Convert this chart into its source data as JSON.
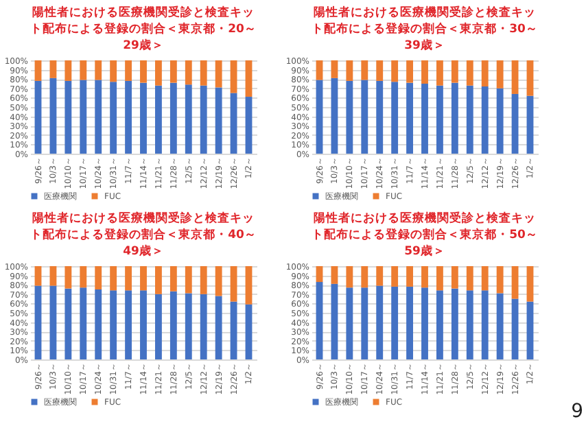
{
  "chart_data": [
    {
      "type": "bar",
      "stacked": true,
      "title": "陽性者における医療機関受診と検査キット配布による登録の割合＜東京都・20～29歳＞",
      "categories": [
        "9/26～",
        "10/3～",
        "10/10～",
        "10/17～",
        "10/24～",
        "10/31～",
        "11/7～",
        "11/14～",
        "11/21～",
        "11/28～",
        "12/5～",
        "12/12～",
        "12/19～",
        "12/26～",
        "1/2～"
      ],
      "ylim": [
        0,
        100
      ],
      "yticks": [
        {
          "value": 0,
          "label": "0%"
        },
        {
          "value": 10,
          "label": "10%"
        },
        {
          "value": 20,
          "label": "20%"
        },
        {
          "value": 30,
          "label": "30%"
        },
        {
          "value": 40,
          "label": "40%"
        },
        {
          "value": 50,
          "label": "50%"
        },
        {
          "value": 60,
          "label": "60%"
        },
        {
          "value": 70,
          "label": "70%"
        },
        {
          "value": 80,
          "label": "80%"
        },
        {
          "value": 90,
          "label": "90%"
        },
        {
          "value": 100,
          "label": "100%"
        }
      ],
      "grid": "y",
      "legend": "bottom",
      "series": [
        {
          "name": "医療機関",
          "color": "#4472c4",
          "values": [
            78,
            81,
            78,
            79,
            79,
            77,
            78,
            76,
            73,
            76,
            74,
            73,
            71,
            65,
            61
          ]
        },
        {
          "name": "FUC",
          "color": "#ed7d31",
          "values": [
            22,
            19,
            22,
            21,
            21,
            23,
            22,
            24,
            27,
            24,
            26,
            27,
            29,
            35,
            39
          ]
        }
      ]
    },
    {
      "type": "bar",
      "stacked": true,
      "title": "陽性者における医療機関受診と検査キット配布による登録の割合＜東京都・30～39歳＞",
      "categories": [
        "9/26～",
        "10/3～",
        "10/10～",
        "10/17～",
        "10/24～",
        "10/31～",
        "11/7～",
        "11/14～",
        "11/21～",
        "11/28～",
        "12/5～",
        "12/12～",
        "12/19～",
        "12/26～",
        "1/2～"
      ],
      "ylim": [
        0,
        100
      ],
      "yticks": [
        {
          "value": 0,
          "label": "0%"
        },
        {
          "value": 10,
          "label": "10%"
        },
        {
          "value": 20,
          "label": "20%"
        },
        {
          "value": 30,
          "label": "30%"
        },
        {
          "value": 40,
          "label": "40%"
        },
        {
          "value": 50,
          "label": "50%"
        },
        {
          "value": 60,
          "label": "60%"
        },
        {
          "value": 70,
          "label": "70%"
        },
        {
          "value": 80,
          "label": "80%"
        },
        {
          "value": 90,
          "label": "90%"
        },
        {
          "value": 100,
          "label": "100%"
        }
      ],
      "grid": "y",
      "legend": "bottom",
      "series": [
        {
          "name": "医療機関",
          "color": "#4472c4",
          "values": [
            79,
            81,
            78,
            79,
            78,
            77,
            76,
            75,
            73,
            76,
            73,
            72,
            70,
            64,
            62
          ]
        },
        {
          "name": "FUC",
          "color": "#ed7d31",
          "values": [
            21,
            19,
            22,
            21,
            22,
            23,
            24,
            25,
            27,
            24,
            27,
            28,
            30,
            36,
            38
          ]
        }
      ]
    },
    {
      "type": "bar",
      "stacked": true,
      "title": "陽性者における医療機関受診と検査キット配布による登録の割合＜東京都・40～49歳＞",
      "categories": [
        "9/26～",
        "10/3～",
        "10/10～",
        "10/17～",
        "10/24～",
        "10/31～",
        "11/7～",
        "11/14～",
        "11/21～",
        "11/28～",
        "12/5～",
        "12/12～",
        "12/19～",
        "12/26～",
        "1/2～"
      ],
      "ylim": [
        0,
        100
      ],
      "yticks": [
        {
          "value": 0,
          "label": "0%"
        },
        {
          "value": 10,
          "label": "10%"
        },
        {
          "value": 20,
          "label": "20%"
        },
        {
          "value": 30,
          "label": "30%"
        },
        {
          "value": 40,
          "label": "40%"
        },
        {
          "value": 50,
          "label": "50%"
        },
        {
          "value": 60,
          "label": "60%"
        },
        {
          "value": 70,
          "label": "70%"
        },
        {
          "value": 80,
          "label": "80%"
        },
        {
          "value": 90,
          "label": "90%"
        },
        {
          "value": 100,
          "label": "100%"
        }
      ],
      "grid": "y",
      "legend": "bottom",
      "series": [
        {
          "name": "医療機関",
          "color": "#4472c4",
          "values": [
            79,
            79,
            76,
            77,
            75,
            74,
            74,
            74,
            70,
            73,
            71,
            70,
            68,
            62,
            59
          ]
        },
        {
          "name": "FUC",
          "color": "#ed7d31",
          "values": [
            21,
            21,
            24,
            23,
            25,
            26,
            26,
            26,
            30,
            27,
            29,
            30,
            32,
            38,
            41
          ]
        }
      ]
    },
    {
      "type": "bar",
      "stacked": true,
      "title": "陽性者における医療機関受診と検査キット配布による登録の割合＜東京都・50～59歳＞",
      "categories": [
        "9/26～",
        "10/3～",
        "10/10～",
        "10/17～",
        "10/24～",
        "10/31～",
        "11/7～",
        "11/14～",
        "11/21～",
        "11/28～",
        "12/5～",
        "12/12～",
        "12/19～",
        "12/26～",
        "1/2～"
      ],
      "ylim": [
        0,
        100
      ],
      "yticks": [
        {
          "value": 0,
          "label": "0%"
        },
        {
          "value": 10,
          "label": "10%"
        },
        {
          "value": 20,
          "label": "20%"
        },
        {
          "value": 30,
          "label": "30%"
        },
        {
          "value": 40,
          "label": "40%"
        },
        {
          "value": 50,
          "label": "50%"
        },
        {
          "value": 60,
          "label": "60%"
        },
        {
          "value": 70,
          "label": "70%"
        },
        {
          "value": 80,
          "label": "80%"
        },
        {
          "value": 90,
          "label": "90%"
        },
        {
          "value": 100,
          "label": "100%"
        }
      ],
      "grid": "y",
      "legend": "bottom",
      "annotations": [
        "9"
      ],
      "series": [
        {
          "name": "医療機関",
          "color": "#4472c4",
          "values": [
            83,
            81,
            77,
            77,
            79,
            78,
            78,
            77,
            74,
            76,
            74,
            74,
            71,
            65,
            62
          ]
        },
        {
          "name": "FUC",
          "color": "#ed7d31",
          "values": [
            17,
            19,
            23,
            23,
            21,
            22,
            22,
            23,
            26,
            24,
            26,
            26,
            29,
            35,
            38
          ]
        }
      ]
    }
  ]
}
